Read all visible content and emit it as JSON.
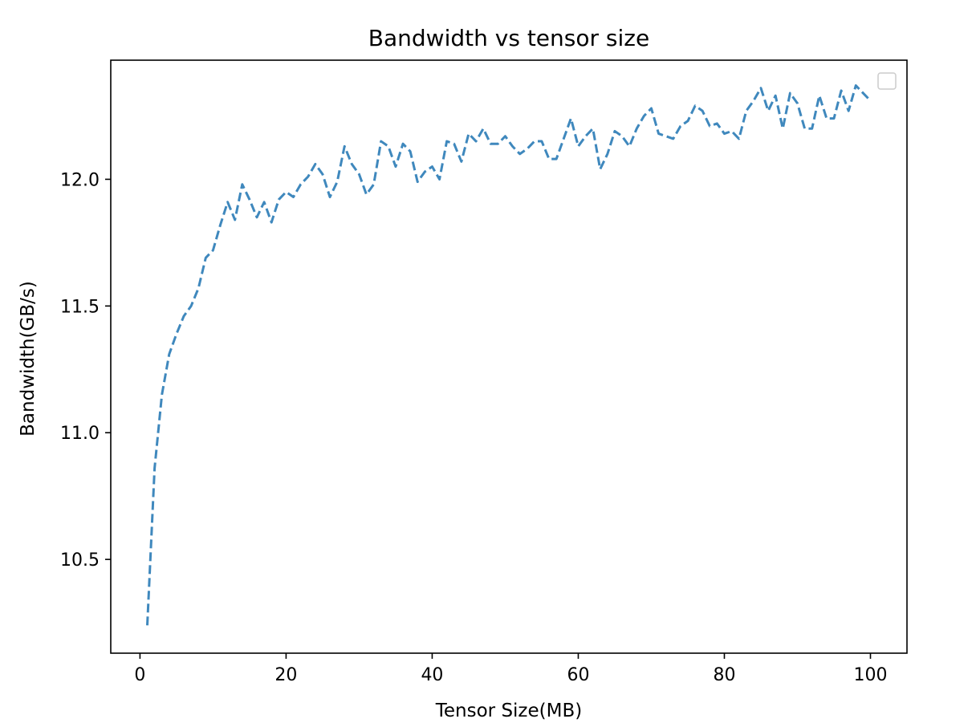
{
  "colors": {
    "series": "#3f88bd",
    "axes": "#000000",
    "background": "#ffffff",
    "legend_border": "#cccccc"
  },
  "chart_data": {
    "type": "line",
    "title": "Bandwidth vs tensor size",
    "xlabel": "Tensor Size(MB)",
    "ylabel": "Bandwidth(GB/s)",
    "xlim": [
      -4,
      105
    ],
    "ylim": [
      10.13,
      12.47
    ],
    "xticks": [
      0,
      20,
      40,
      60,
      80,
      100
    ],
    "xtick_labels": [
      "0",
      "20",
      "40",
      "60",
      "80",
      "100"
    ],
    "yticks": [
      10.5,
      11.0,
      11.5,
      12.0
    ],
    "ytick_labels": [
      "10.5",
      "11.0",
      "11.5",
      "12.0"
    ],
    "grid": false,
    "legend": {
      "placement": "top-right",
      "entries": []
    },
    "line_style": "dashed",
    "series": [
      {
        "x": [
          1,
          2,
          3,
          4,
          5,
          6,
          7,
          8,
          9,
          10,
          11,
          12,
          13,
          14,
          15,
          16,
          17,
          18,
          19,
          20,
          21,
          22,
          23,
          24,
          25,
          26,
          27,
          28,
          29,
          30,
          31,
          32,
          33,
          34,
          35,
          36,
          37,
          38,
          39,
          40,
          41,
          42,
          43,
          44,
          45,
          46,
          47,
          48,
          49,
          50,
          51,
          52,
          53,
          54,
          55,
          56,
          57,
          58,
          59,
          60,
          61,
          62,
          63,
          64,
          65,
          66,
          67,
          68,
          69,
          70,
          71,
          72,
          73,
          74,
          75,
          76,
          77,
          78,
          79,
          80,
          81,
          82,
          83,
          84,
          85,
          86,
          87,
          88,
          89,
          90,
          91,
          92,
          93,
          94,
          95,
          96,
          97,
          98,
          99,
          100
        ],
        "values": [
          10.24,
          10.86,
          11.15,
          11.31,
          11.39,
          11.46,
          11.5,
          11.57,
          11.69,
          11.72,
          11.82,
          11.91,
          11.84,
          11.98,
          11.92,
          11.85,
          11.91,
          11.83,
          11.92,
          11.95,
          11.93,
          11.98,
          12.01,
          12.06,
          12.02,
          11.93,
          11.99,
          12.13,
          12.06,
          12.02,
          11.94,
          11.98,
          12.15,
          12.13,
          12.05,
          12.14,
          12.11,
          11.99,
          12.03,
          12.05,
          12.0,
          12.15,
          12.14,
          12.07,
          12.18,
          12.15,
          12.2,
          12.14,
          12.14,
          12.17,
          12.13,
          12.1,
          12.12,
          12.15,
          12.15,
          12.08,
          12.08,
          12.16,
          12.24,
          12.13,
          12.17,
          12.2,
          12.04,
          12.1,
          12.19,
          12.17,
          12.13,
          12.2,
          12.25,
          12.28,
          12.18,
          12.17,
          12.16,
          12.21,
          12.23,
          12.29,
          12.27,
          12.21,
          12.22,
          12.18,
          12.19,
          12.16,
          12.27,
          12.31,
          12.36,
          12.27,
          12.33,
          12.2,
          12.34,
          12.3,
          12.2,
          12.2,
          12.33,
          12.24,
          12.24,
          12.35,
          12.27,
          12.37,
          12.34,
          12.31
        ]
      }
    ]
  }
}
